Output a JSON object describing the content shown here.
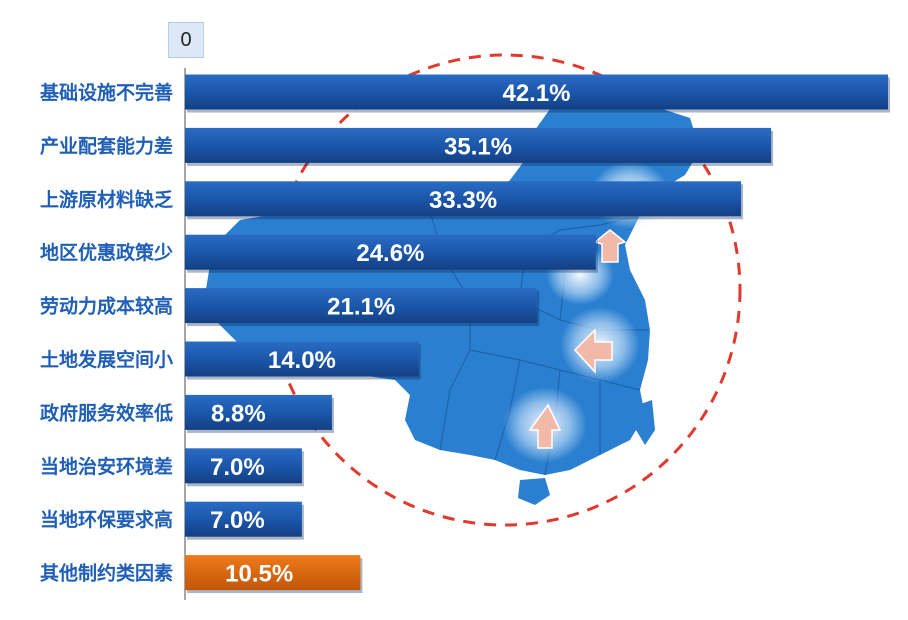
{
  "chart_data": {
    "type": "bar",
    "orientation": "horizontal",
    "axis_start_label": "0",
    "categories": [
      "基础设施不完善",
      "产业配套能力差",
      "上游原材料缺乏",
      "地区优惠政策少",
      "劳动力成本较高",
      "土地发展空间小",
      "政府服务效率低",
      "当地治安环境差",
      "当地环保要求高",
      "其他制约类因素"
    ],
    "values": [
      42.1,
      35.1,
      33.3,
      24.6,
      21.1,
      14.0,
      8.8,
      7.0,
      7.0,
      10.5
    ],
    "value_labels": [
      "42.1%",
      "35.1%",
      "33.3%",
      "24.6%",
      "21.1%",
      "14.0%",
      "8.8%",
      "7.0%",
      "7.0%",
      "10.5%"
    ],
    "xlim": [
      0,
      42.1
    ],
    "grid": false,
    "colors": {
      "bar": "#1a55a8",
      "bar_highlight": "#d9660a",
      "label": "#1f5fb6",
      "map": "#2a7fd0",
      "circle": "#e03a2e"
    },
    "highlight_index": 9
  }
}
